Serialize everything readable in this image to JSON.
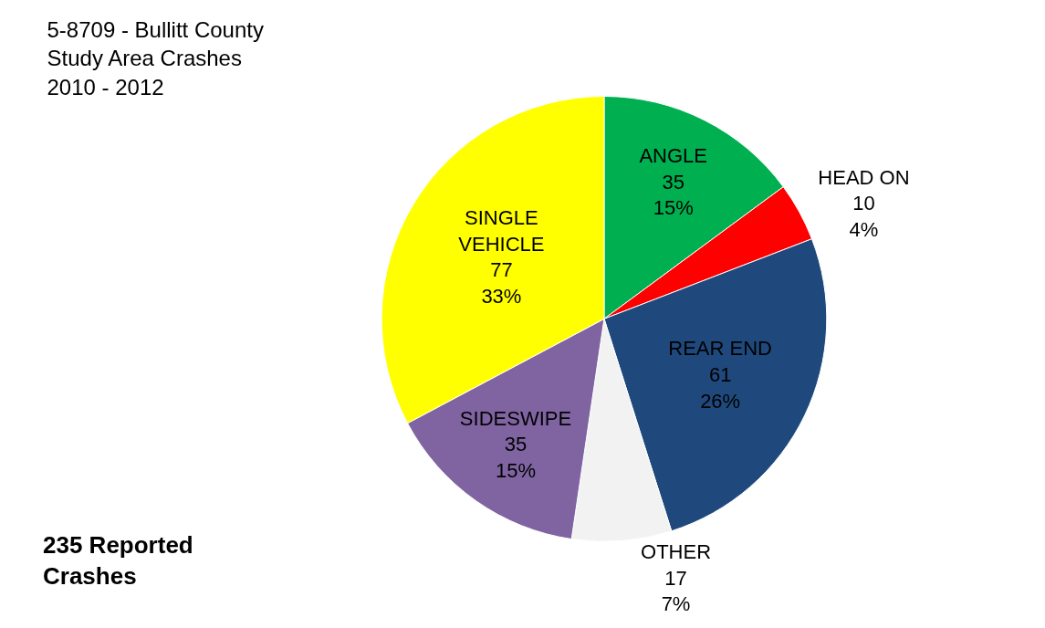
{
  "chart_data": {
    "type": "pie",
    "title": "5-8709 - Bullitt County\nStudy Area Crashes\n2010 - 2012",
    "categories": [
      "ANGLE",
      "HEAD ON",
      "REAR END",
      "OTHER",
      "SIDESWIPE",
      "SINGLE\nVEHICLE"
    ],
    "values": [
      35,
      10,
      61,
      17,
      35,
      77
    ],
    "value_labels": [
      "35\n15%",
      "10\n4%",
      "61\n26%",
      "17\n7%",
      "35\n15%",
      "77\n33%"
    ],
    "colors": [
      "#00b050",
      "#ff0000",
      "#1f497d",
      "#f2f2f2",
      "#8064a2",
      "#ffff00"
    ],
    "annotations": [
      "235 Reported\nCrashes"
    ],
    "legend": false
  }
}
